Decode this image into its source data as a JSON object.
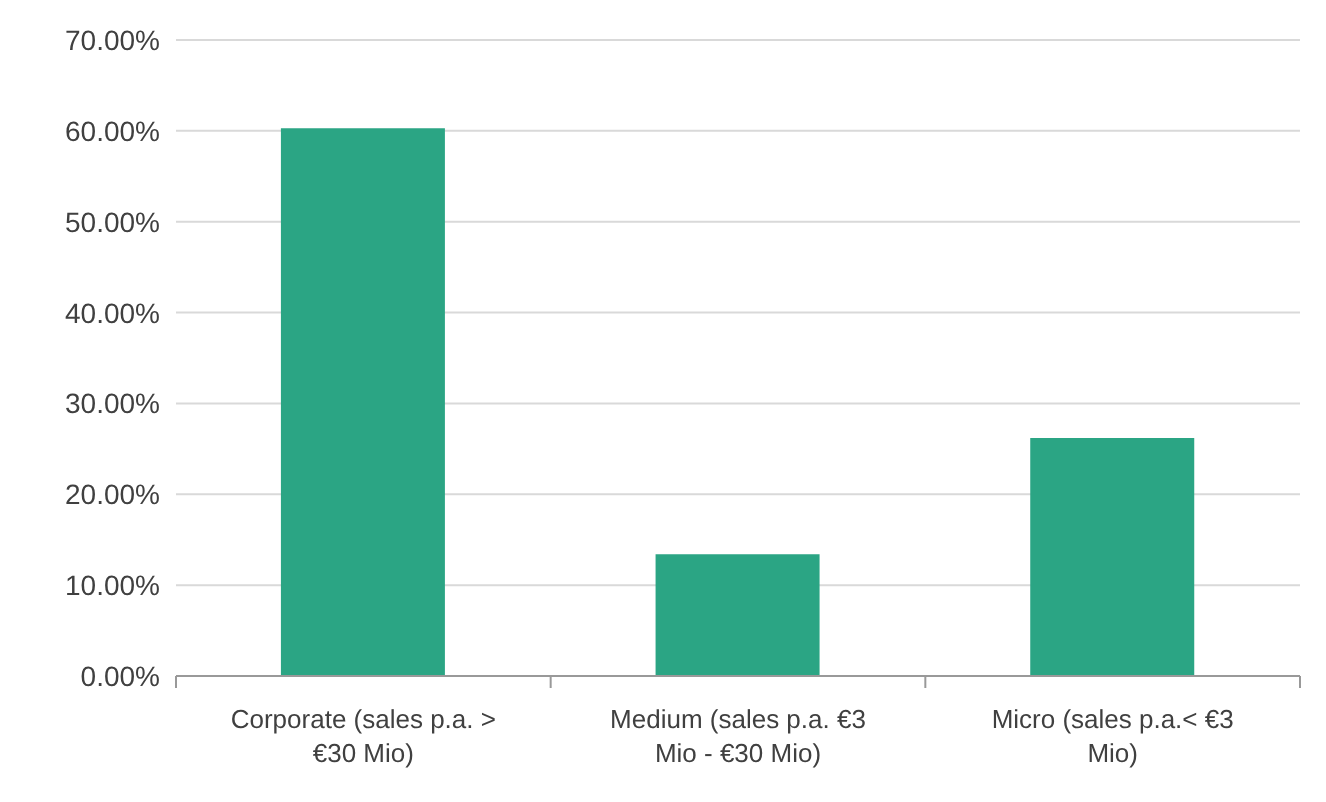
{
  "chart_data": {
    "type": "bar",
    "categories": [
      "Corporate (sales p.a. > €30 Mio)",
      "Medium (sales p.a. €3 Mio - €30 Mio)",
      "Micro (sales p.a.< €3 Mio)"
    ],
    "values": [
      60.3,
      13.4,
      26.2
    ],
    "color": "#2ba584",
    "ylim": [
      0,
      70
    ],
    "yticks": [
      {
        "value": 0,
        "label": "0.00%"
      },
      {
        "value": 10,
        "label": "10.00%"
      },
      {
        "value": 20,
        "label": "20.00%"
      },
      {
        "value": 30,
        "label": "30.00%"
      },
      {
        "value": 40,
        "label": "40.00%"
      },
      {
        "value": 50,
        "label": "50.00%"
      },
      {
        "value": 60,
        "label": "60.00%"
      },
      {
        "value": 70,
        "label": "70.00%"
      }
    ],
    "grid": "y"
  }
}
